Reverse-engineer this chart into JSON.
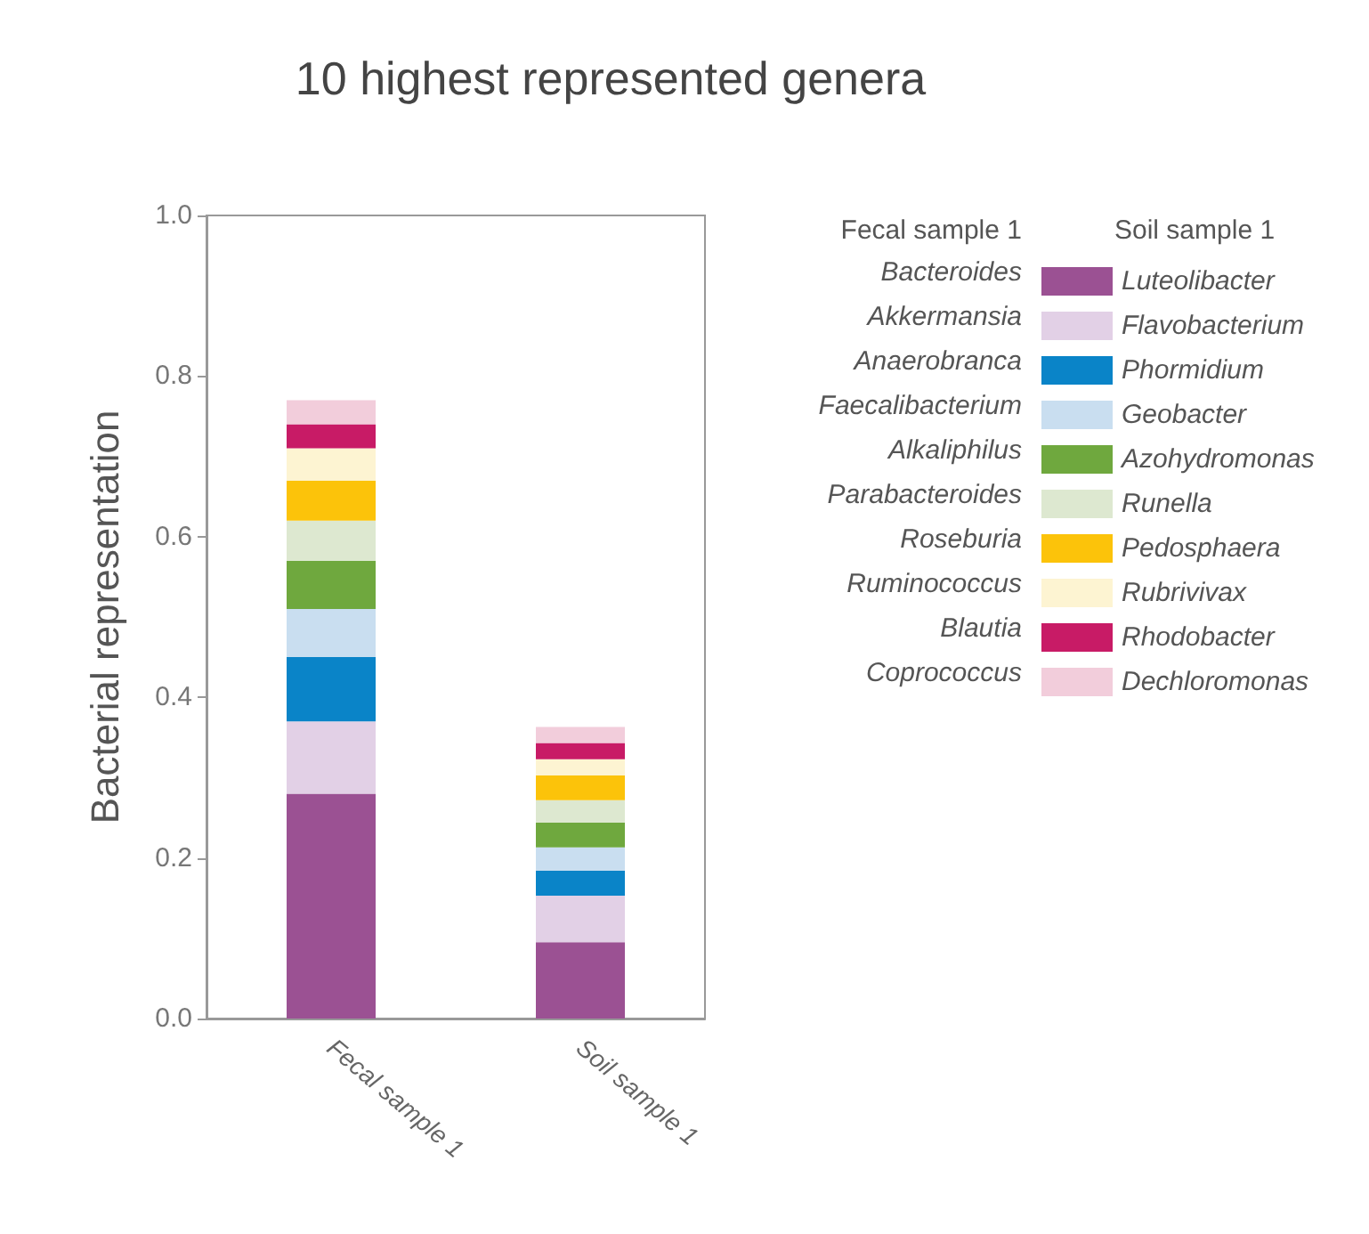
{
  "chart_data": {
    "type": "bar",
    "title": "10 highest represented genera",
    "ylabel": "Bacterial representation",
    "categories": [
      "Fecal sample 1",
      "Soil sample 1"
    ],
    "stacked": true,
    "legend": "right",
    "legend_title": "Soil sample 1",
    "annotations": [
      "Fecal sample 1",
      "Bacteroides",
      "Akkermansia",
      "Anaerobranca",
      "Faecalibacterium",
      "Alkaliphilus",
      "Parabacteroides",
      "Roseburia",
      "Ruminococcus",
      "Blautia",
      "Coprococcus"
    ],
    "ylim": [
      0,
      1
    ],
    "yticks": [
      {
        "value": 0,
        "label": "0.0"
      },
      {
        "value": 0.2,
        "label": "0.2"
      },
      {
        "value": 0.4,
        "label": "0.4"
      },
      {
        "value": 0.6,
        "label": "0.6"
      },
      {
        "value": 0.8,
        "label": "0.8"
      },
      {
        "value": 1,
        "label": "1.0"
      }
    ],
    "grid": false,
    "series": [
      {
        "name": "Luteolibacter",
        "color": "#9b5193",
        "values": [
          0.28,
          0.095
        ]
      },
      {
        "name": "Flavobacterium",
        "color": "#e2d0e6",
        "values": [
          0.09,
          0.058
        ]
      },
      {
        "name": "Phormidium",
        "color": "#0a84c8",
        "values": [
          0.08,
          0.031
        ]
      },
      {
        "name": "Geobacter",
        "color": "#c9def0",
        "values": [
          0.06,
          0.029
        ]
      },
      {
        "name": "Azohydromonas",
        "color": "#6fa83e",
        "values": [
          0.06,
          0.031
        ]
      },
      {
        "name": "Runella",
        "color": "#dde8d0",
        "values": [
          0.05,
          0.028
        ]
      },
      {
        "name": "Pedosphaera",
        "color": "#fcc30a",
        "values": [
          0.05,
          0.031
        ]
      },
      {
        "name": "Rubrivivax",
        "color": "#fdf4d2",
        "values": [
          0.04,
          0.02
        ]
      },
      {
        "name": "Rhodobacter",
        "color": "#c81b66",
        "values": [
          0.03,
          0.02
        ]
      },
      {
        "name": "Dechloromonas",
        "color": "#f2cddb",
        "values": [
          0.03,
          0.02
        ]
      }
    ]
  }
}
